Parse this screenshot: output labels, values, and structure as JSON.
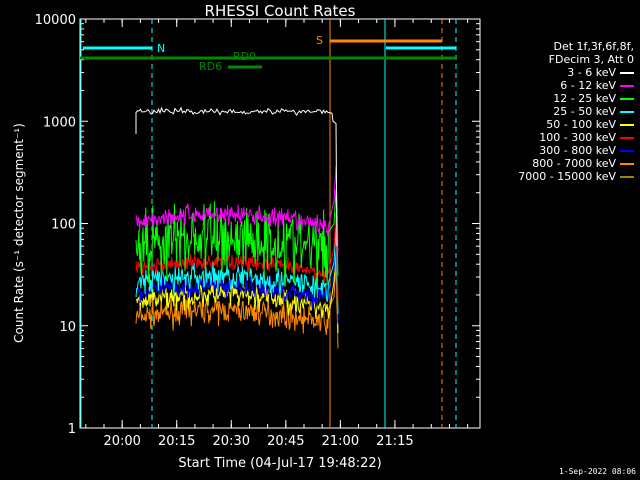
{
  "chart_data": {
    "type": "line",
    "title": "RHESSI Count Rates",
    "xlabel": "Start Time (04-Jul-17 19:48:22)",
    "ylabel": "Count Rate (s⁻¹ detector segment⁻¹)",
    "yscale": "log",
    "xlim_minutes_after_start": [
      0,
      110
    ],
    "ylim": [
      1,
      10000
    ],
    "x_ticks": [
      {
        "label": "20:00",
        "minutes": 11.6
      },
      {
        "label": "20:15",
        "minutes": 26.6
      },
      {
        "label": "20:30",
        "minutes": 41.6
      },
      {
        "label": "20:45",
        "minutes": 56.6
      },
      {
        "label": "21:00",
        "minutes": 71.6
      },
      {
        "label": "21:15",
        "minutes": 86.6
      }
    ],
    "y_ticks": [
      {
        "label": "1",
        "value": 1
      },
      {
        "label": "10",
        "value": 10
      },
      {
        "label": "100",
        "value": 100
      },
      {
        "label": "1000",
        "value": 1000
      },
      {
        "label": "10000",
        "value": 10000
      }
    ],
    "legend_header": [
      "Det 1f,3f,6f,8f,",
      "FDecim 3, Att 0"
    ],
    "series": [
      {
        "name": "3 - 6 keV",
        "color": "#ffffff",
        "level": 1250,
        "noise": 0.015
      },
      {
        "name": "6 - 12 keV",
        "color": "#ff00ff",
        "level": 105,
        "noise": 0.05
      },
      {
        "name": "12 - 25 keV",
        "color": "#00ff00",
        "level": 62,
        "noise": 0.18
      },
      {
        "name": "25 - 50 keV",
        "color": "#00ffff",
        "level": 26,
        "noise": 0.07
      },
      {
        "name": "50 - 100 keV",
        "color": "#ffff00",
        "level": 17,
        "noise": 0.06
      },
      {
        "name": "100 - 300 keV",
        "color": "#ff0000",
        "level": 36,
        "noise": 0.04
      },
      {
        "name": "300 - 800 keV",
        "color": "#0000ff",
        "level": 21,
        "noise": 0.05
      },
      {
        "name": "800 - 7000 keV",
        "color": "#ff8800",
        "level": 12,
        "noise": 0.06
      },
      {
        "name": "7000 - 15000 keV",
        "color": "#998800",
        "level": 0,
        "noise": 0
      }
    ],
    "annotations": [
      {
        "label": "N",
        "color": "#00ffff"
      },
      {
        "label": "S",
        "color": "#ff8800"
      },
      {
        "label": "RD0",
        "color": "#008800"
      },
      {
        "label": "RD6",
        "color": "#008800"
      }
    ]
  },
  "footer_date": "1-Sep-2022 08:06"
}
